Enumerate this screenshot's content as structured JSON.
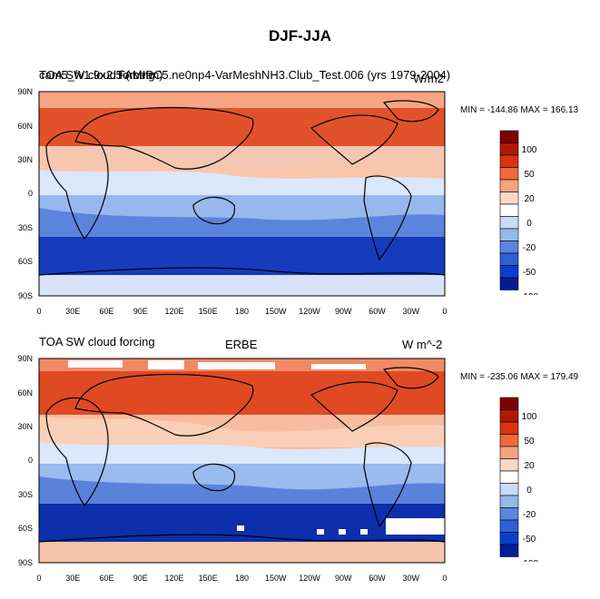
{
  "title": "DJF-JJA",
  "panels": [
    {
      "left_title_1": "TOA SW cloud forcing",
      "left_title_2": "cam5_fv1.9x2.5 (mean)",
      "center_title": "",
      "case_label": "FAMIPC5.ne0np4-VarMeshNH3.Club_Test.006 (yrs 1979-2004)",
      "units": "W/m2",
      "minmax": "MIN = -144.86 MAX = 166.13"
    },
    {
      "left_title_1": "TOA SW cloud forcing",
      "center_title": "ERBE",
      "units": "W m^-2",
      "minmax": "MIN = -235.06 MAX = 179.49"
    }
  ],
  "axes": {
    "lat_labels": [
      "90N",
      "60N",
      "30N",
      "0",
      "30S",
      "60S",
      "90S"
    ],
    "lon_labels": [
      "0",
      "30E",
      "60E",
      "90E",
      "120E",
      "150E",
      "180",
      "150W",
      "120W",
      "90W",
      "60W",
      "30W",
      "0"
    ]
  },
  "colorbar": {
    "tick_labels": [
      "100",
      "50",
      "20",
      "0",
      "-20",
      "-50",
      "-100"
    ],
    "colors": [
      "#7f0000",
      "#b01a00",
      "#d9330e",
      "#ef6a3a",
      "#f7a27f",
      "#fdd9c5",
      "#ffffff",
      "#c8dcf5",
      "#95b9ec",
      "#5b86dd",
      "#2f5fd6",
      "#0a3fcb",
      "#021c98"
    ]
  },
  "chart_data": {
    "type": "heatmap",
    "title": "DJF-JJA",
    "xlabel": "",
    "ylabel": "",
    "x_ticks": [
      "0",
      "30E",
      "60E",
      "90E",
      "120E",
      "150E",
      "180",
      "150W",
      "120W",
      "90W",
      "60W",
      "30W",
      "0"
    ],
    "y_ticks": [
      "90N",
      "60N",
      "30N",
      "0",
      "30S",
      "60S",
      "90S"
    ],
    "xlim": [
      0,
      360
    ],
    "ylim": [
      -90,
      90
    ],
    "panels": [
      {
        "name": "TOA SW cloud forcing",
        "min": -144.86,
        "max": 166.13
      },
      {
        "name": "ERBE",
        "min": -235.06,
        "max": 179.49
      }
    ],
    "contour_levels": [
      -100,
      -50,
      -20,
      0,
      20,
      50,
      100
    ]
  }
}
